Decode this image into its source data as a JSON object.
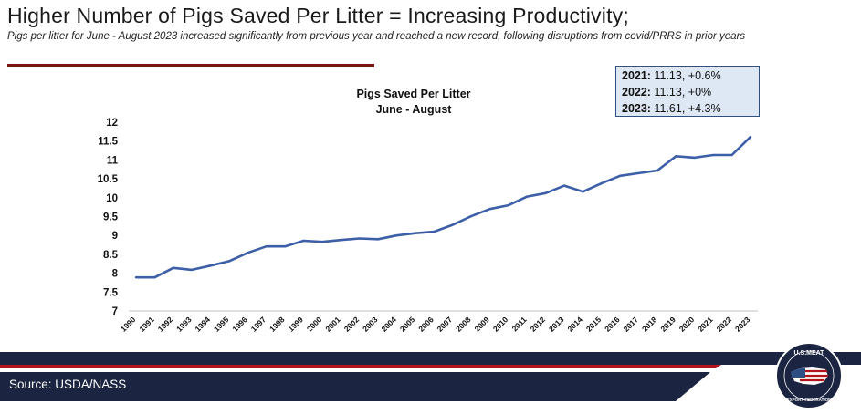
{
  "header": {
    "title": "Higher Number of Pigs Saved Per Litter = Increasing Productivity;",
    "subtitle": "Pigs per litter for June - August 2023 increased significantly from previous year and reached a new record, following disruptions from covid/PRRS in prior years"
  },
  "callout": {
    "rows": [
      {
        "year": "2021:",
        "value": "11.13, +0.6%"
      },
      {
        "year": "2022:",
        "value": "11.13, +0%"
      },
      {
        "year": "2023:",
        "value": "11.61, +4.3%"
      }
    ]
  },
  "footer": {
    "source": "Source: USDA/NASS",
    "logo_text_top": "U.S.MEAT",
    "logo_text_bottom": "EXPORT FEDERATION"
  },
  "colors": {
    "line": "#3d5fa8",
    "title_rule": "#7a1515",
    "footer_navy": "#1b2440",
    "footer_red": "#b3131b",
    "callout_bg": "#dde8f4",
    "callout_border": "#2e4f84"
  },
  "chart_data": {
    "type": "line",
    "title": "Pigs Saved Per Litter",
    "subtitle": "June - August",
    "xlabel": "",
    "ylabel": "",
    "ylim": [
      7,
      12
    ],
    "yticks": [
      7,
      7.5,
      8,
      8.5,
      9,
      9.5,
      10,
      10.5,
      11,
      11.5,
      12
    ],
    "grid": false,
    "legend": "none",
    "categories": [
      "1990",
      "1991",
      "1992",
      "1993",
      "1994",
      "1995",
      "1996",
      "1997",
      "1998",
      "1999",
      "2000",
      "2001",
      "2002",
      "2003",
      "2004",
      "2005",
      "2006",
      "2007",
      "2008",
      "2009",
      "2010",
      "2011",
      "2012",
      "2013",
      "2014",
      "2015",
      "2016",
      "2017",
      "2018",
      "2019",
      "2020",
      "2021",
      "2022",
      "2023"
    ],
    "values": [
      7.89,
      7.89,
      8.14,
      8.09,
      8.2,
      8.32,
      8.54,
      8.71,
      8.71,
      8.86,
      8.83,
      8.88,
      8.92,
      8.9,
      9.0,
      9.06,
      9.1,
      9.28,
      9.51,
      9.7,
      9.8,
      10.03,
      10.12,
      10.32,
      10.16,
      10.38,
      10.58,
      10.65,
      10.72,
      11.1,
      11.06,
      11.13,
      11.13,
      11.61
    ]
  }
}
